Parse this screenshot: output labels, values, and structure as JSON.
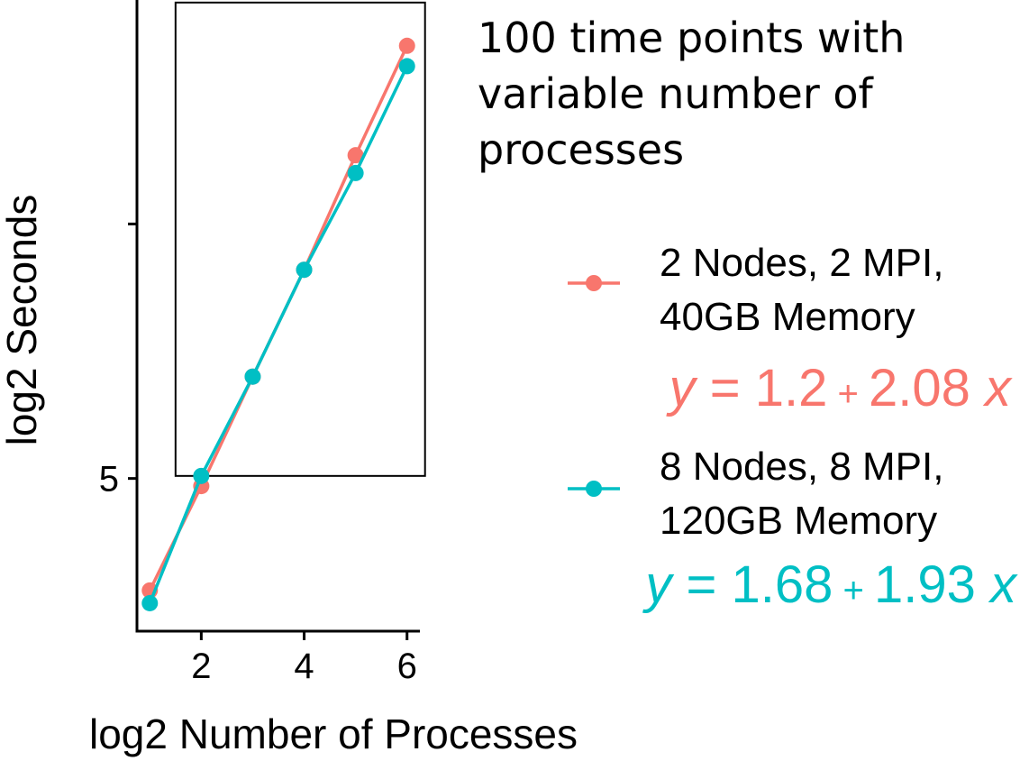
{
  "chart_data": {
    "type": "line",
    "title_lines": [
      "100 time points with",
      "variable number of",
      "processes"
    ],
    "xlabel": "log2 Number of Processes",
    "ylabel": "log2 Seconds",
    "xlim": [
      0.75,
      6.25
    ],
    "ylim": [
      2.0,
      14.4
    ],
    "x_ticks": [
      2,
      4,
      6
    ],
    "y_ticks": [
      5,
      10
    ],
    "y_tick_labels": [
      "5",
      ""
    ],
    "grid": false,
    "legend_position": "right",
    "highlight_box": {
      "x": [
        1.5,
        6.35
      ],
      "y": [
        5.05,
        14.35
      ]
    },
    "series": [
      {
        "legend_lines": [
          "2 Nodes, 2 MPI,",
          "40GB Memory"
        ],
        "equation": {
          "intercept": "1.2",
          "slope": "2.08"
        },
        "color": "#F8766D",
        "x": [
          1,
          2,
          3,
          4,
          5,
          6
        ],
        "y": [
          2.8,
          4.85,
          7.0,
          9.1,
          11.35,
          13.5
        ]
      },
      {
        "legend_lines": [
          "8 Nodes, 8 MPI,",
          "120GB Memory"
        ],
        "equation": {
          "intercept": "1.68",
          "slope": "1.93"
        },
        "color": "#00BFC4",
        "x": [
          1,
          2,
          3,
          4,
          5,
          6
        ],
        "y": [
          2.55,
          5.05,
          7.0,
          9.1,
          11.0,
          13.1
        ]
      }
    ]
  }
}
